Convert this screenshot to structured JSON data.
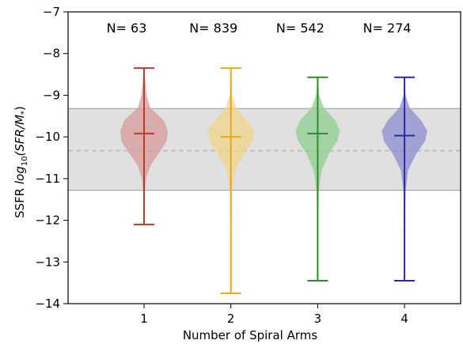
{
  "chart_data": {
    "type": "violin",
    "xlabel": "Number of Spiral Arms",
    "ylabel_prefix": "SSFR ",
    "ylabel_math": "log",
    "ylabel_sub": "10",
    "ylabel_paren": "(SFR/M",
    "ylabel_star": "*",
    "ylabel_close": ")",
    "categories": [
      "1",
      "2",
      "3",
      "4"
    ],
    "ylim": [
      -14,
      -7
    ],
    "yticks": [
      -7,
      -8,
      -9,
      -10,
      -11,
      -12,
      -13,
      -14
    ],
    "ytick_labels": [
      "−7",
      "−8",
      "−9",
      "−10",
      "−11",
      "−12",
      "−13",
      "−14"
    ],
    "series": [
      {
        "category": "1",
        "n_label": "N=  63",
        "color": "#c0392b",
        "fill": "#d89a9a",
        "min": -12.1,
        "max": -8.35,
        "median": -9.92,
        "profile": [
          [
            -8.35,
            0.0
          ],
          [
            -9.0,
            0.05
          ],
          [
            -9.3,
            0.12
          ],
          [
            -9.6,
            0.38
          ],
          [
            -9.85,
            0.46
          ],
          [
            -10.1,
            0.44
          ],
          [
            -10.4,
            0.28
          ],
          [
            -10.7,
            0.12
          ],
          [
            -11.0,
            0.04
          ],
          [
            -11.4,
            0.01
          ],
          [
            -12.1,
            0.0
          ]
        ]
      },
      {
        "category": "2",
        "n_label": "N= 839",
        "color": "#e6a817",
        "fill": "#f0d58a",
        "min": -13.75,
        "max": -8.35,
        "median": -10.0,
        "profile": [
          [
            -8.35,
            0.0
          ],
          [
            -9.0,
            0.02
          ],
          [
            -9.3,
            0.1
          ],
          [
            -9.6,
            0.3
          ],
          [
            -9.85,
            0.45
          ],
          [
            -10.1,
            0.42
          ],
          [
            -10.4,
            0.26
          ],
          [
            -10.8,
            0.08
          ],
          [
            -11.3,
            0.02
          ],
          [
            -12.5,
            0.005
          ],
          [
            -13.75,
            0.0
          ]
        ]
      },
      {
        "category": "3",
        "n_label": "N= 542",
        "color": "#2e8b2e",
        "fill": "#8fcf8f",
        "min": -13.45,
        "max": -8.57,
        "median": -9.92,
        "profile": [
          [
            -8.57,
            0.0
          ],
          [
            -9.0,
            0.03
          ],
          [
            -9.3,
            0.12
          ],
          [
            -9.6,
            0.34
          ],
          [
            -9.85,
            0.43
          ],
          [
            -10.1,
            0.38
          ],
          [
            -10.4,
            0.22
          ],
          [
            -10.8,
            0.08
          ],
          [
            -11.3,
            0.02
          ],
          [
            -12.5,
            0.005
          ],
          [
            -13.45,
            0.0
          ]
        ]
      },
      {
        "category": "4",
        "n_label": "N= 274",
        "color": "#2a2a9e",
        "fill": "#8c8cd0",
        "min": -13.45,
        "max": -8.57,
        "median": -9.97,
        "profile": [
          [
            -8.57,
            0.0
          ],
          [
            -9.0,
            0.02
          ],
          [
            -9.3,
            0.1
          ],
          [
            -9.6,
            0.32
          ],
          [
            -9.85,
            0.44
          ],
          [
            -10.1,
            0.4
          ],
          [
            -10.4,
            0.23
          ],
          [
            -10.8,
            0.07
          ],
          [
            -11.3,
            0.02
          ],
          [
            -12.5,
            0.005
          ],
          [
            -13.45,
            0.0
          ]
        ]
      }
    ],
    "band": {
      "low": -11.28,
      "high": -9.32,
      "color": "#e0e0e0"
    },
    "reference_line": {
      "value": -10.33,
      "color": "#b8b8b8",
      "style": "dashed"
    }
  }
}
